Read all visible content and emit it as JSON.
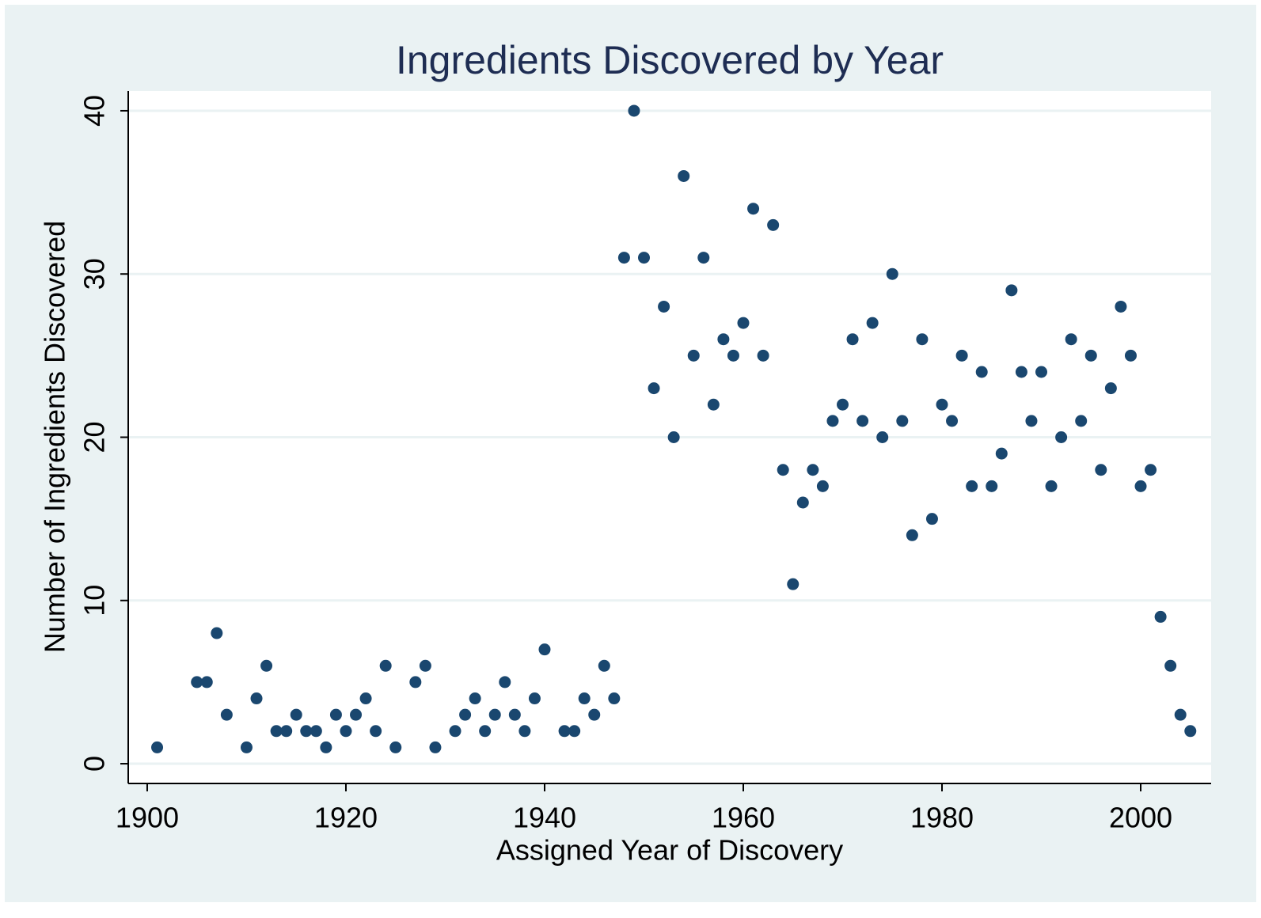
{
  "chart_data": {
    "type": "scatter",
    "title": "Ingredients Discovered by Year",
    "xlabel": "Assigned Year of Discovery",
    "ylabel": "Number of Ingredients Discovered",
    "color": "#1a476f",
    "grid": true,
    "xlim": [
      1898.09,
      2007.09
    ],
    "ylim": [
      -1.21,
      41.21
    ],
    "xticks": [
      1900,
      1920,
      1940,
      1960,
      1980,
      2000
    ],
    "yticks": [
      0,
      10,
      20,
      30,
      40
    ],
    "x": [
      1901,
      1905,
      1906,
      1907,
      1908,
      1910,
      1911,
      1912,
      1913,
      1914,
      1915,
      1916,
      1917,
      1918,
      1919,
      1920,
      1921,
      1922,
      1923,
      1924,
      1925,
      1927,
      1928,
      1929,
      1931,
      1932,
      1933,
      1934,
      1935,
      1936,
      1937,
      1938,
      1939,
      1940,
      1942,
      1943,
      1944,
      1945,
      1946,
      1947,
      1948,
      1949,
      1950,
      1951,
      1952,
      1953,
      1954,
      1955,
      1956,
      1957,
      1958,
      1959,
      1960,
      1961,
      1962,
      1963,
      1964,
      1965,
      1966,
      1967,
      1968,
      1969,
      1970,
      1971,
      1972,
      1973,
      1974,
      1975,
      1976,
      1977,
      1978,
      1979,
      1980,
      1981,
      1982,
      1983,
      1984,
      1985,
      1986,
      1987,
      1988,
      1989,
      1990,
      1991,
      1992,
      1993,
      1994,
      1995,
      1996,
      1997,
      1998,
      1999,
      2000,
      2001,
      2002,
      2003,
      2004,
      2005
    ],
    "values": [
      1,
      5,
      5,
      8,
      3,
      1,
      4,
      6,
      2,
      2,
      3,
      2,
      2,
      1,
      3,
      2,
      3,
      4,
      2,
      6,
      1,
      5,
      6,
      1,
      2,
      3,
      4,
      2,
      3,
      5,
      3,
      2,
      4,
      7,
      2,
      2,
      4,
      3,
      6,
      4,
      31,
      40,
      31,
      23,
      28,
      20,
      36,
      25,
      31,
      22,
      26,
      25,
      27,
      34,
      25,
      33,
      18,
      11,
      16,
      18,
      17,
      21,
      22,
      26,
      21,
      27,
      20,
      30,
      21,
      14,
      26,
      15,
      22,
      21,
      25,
      17,
      24,
      17,
      19,
      29,
      24,
      21,
      24,
      17,
      20,
      26,
      21,
      25,
      18,
      23,
      28,
      25,
      17,
      18,
      9,
      6,
      3,
      2
    ]
  }
}
